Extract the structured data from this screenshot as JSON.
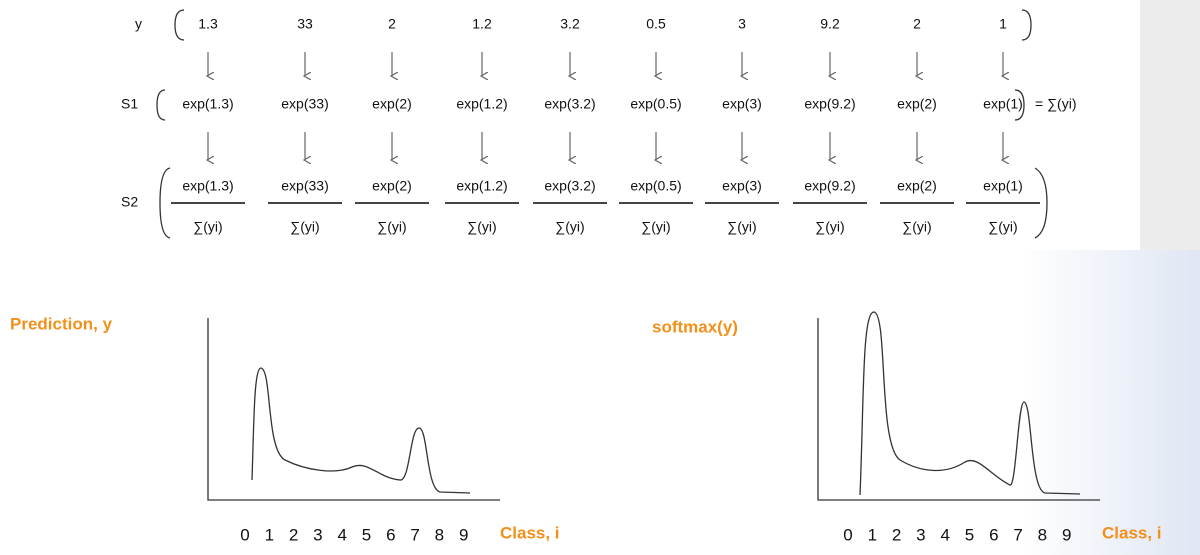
{
  "panel": {
    "y_row": {
      "label": "y",
      "cells": [
        "1.3",
        "33",
        "2",
        "1.2",
        "3.2",
        "0.5",
        "3",
        "9.2",
        "2",
        "1"
      ]
    },
    "s1_row": {
      "label": "S1",
      "cells": [
        "exp(1.3)",
        "exp(33)",
        "exp(2)",
        "exp(1.2)",
        "exp(3.2)",
        "exp(0.5)",
        "exp(3)",
        "exp(9.2)",
        "exp(2)",
        "exp(1)"
      ],
      "sum": "= ∑(yi)"
    },
    "s2_row": {
      "label": "S2",
      "numerators": [
        "exp(1.3)",
        "exp(33)",
        "exp(2)",
        "exp(1.2)",
        "exp(3.2)",
        "exp(0.5)",
        "exp(3)",
        "exp(9.2)",
        "exp(2)",
        "exp(1)"
      ],
      "denominators": [
        "∑(yi)",
        "∑(yi)",
        "∑(yi)",
        "∑(yi)",
        "∑(yi)",
        "∑(yi)",
        "∑(yi)",
        "∑(yi)",
        "∑(yi)",
        "∑(yi)"
      ]
    }
  },
  "plots": [
    {
      "title": "Prediction, y",
      "x_ticks": [
        "0",
        "1",
        "2",
        "3",
        "4",
        "5",
        "6",
        "7",
        "8",
        "9"
      ],
      "x_label": "Class, i"
    },
    {
      "title": "softmax(y)",
      "x_ticks": [
        "0",
        "1",
        "2",
        "3",
        "4",
        "5",
        "6",
        "7",
        "8",
        "9"
      ],
      "x_label": "Class, i"
    }
  ]
}
